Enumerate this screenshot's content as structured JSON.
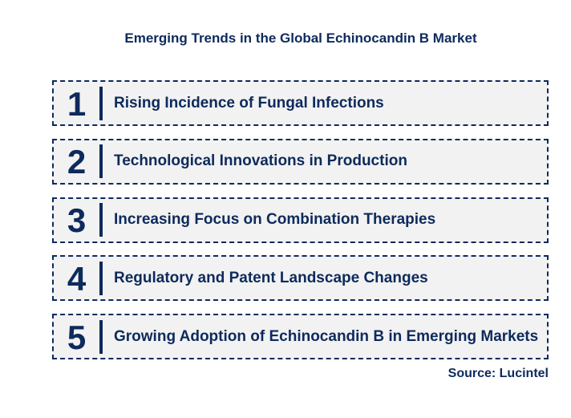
{
  "chart_data": {
    "type": "table",
    "title": "Emerging Trends in the Global Echinocandin B Market",
    "categories": [
      "1",
      "2",
      "3",
      "4",
      "5"
    ],
    "values": [
      "Rising Incidence of Fungal Infections",
      "Technological Innovations in Production",
      "Increasing Focus on Combination Therapies",
      "Regulatory and Patent Landscape Changes",
      "Growing Adoption of Echinocandin B in Emerging Markets"
    ],
    "source": "Source: Lucintel",
    "legend_position": "none",
    "grid": false
  },
  "header": {
    "title": "Emerging Trends in the Global Echinocandin B Market"
  },
  "trends": [
    {
      "number": "1",
      "label": "Rising Incidence of Fungal Infections"
    },
    {
      "number": "2",
      "label": "Technological Innovations in Production"
    },
    {
      "number": "3",
      "label": "Increasing Focus on Combination Therapies"
    },
    {
      "number": "4",
      "label": "Regulatory and Patent Landscape Changes"
    },
    {
      "number": "5",
      "label": "Growing Adoption of Echinocandin B in Emerging Markets"
    }
  ],
  "footer": {
    "source": "Source: Lucintel"
  },
  "colors": {
    "navy": "#0d2a5c",
    "box_bg": "#f2f2f2",
    "page_bg": "#ffffff"
  }
}
